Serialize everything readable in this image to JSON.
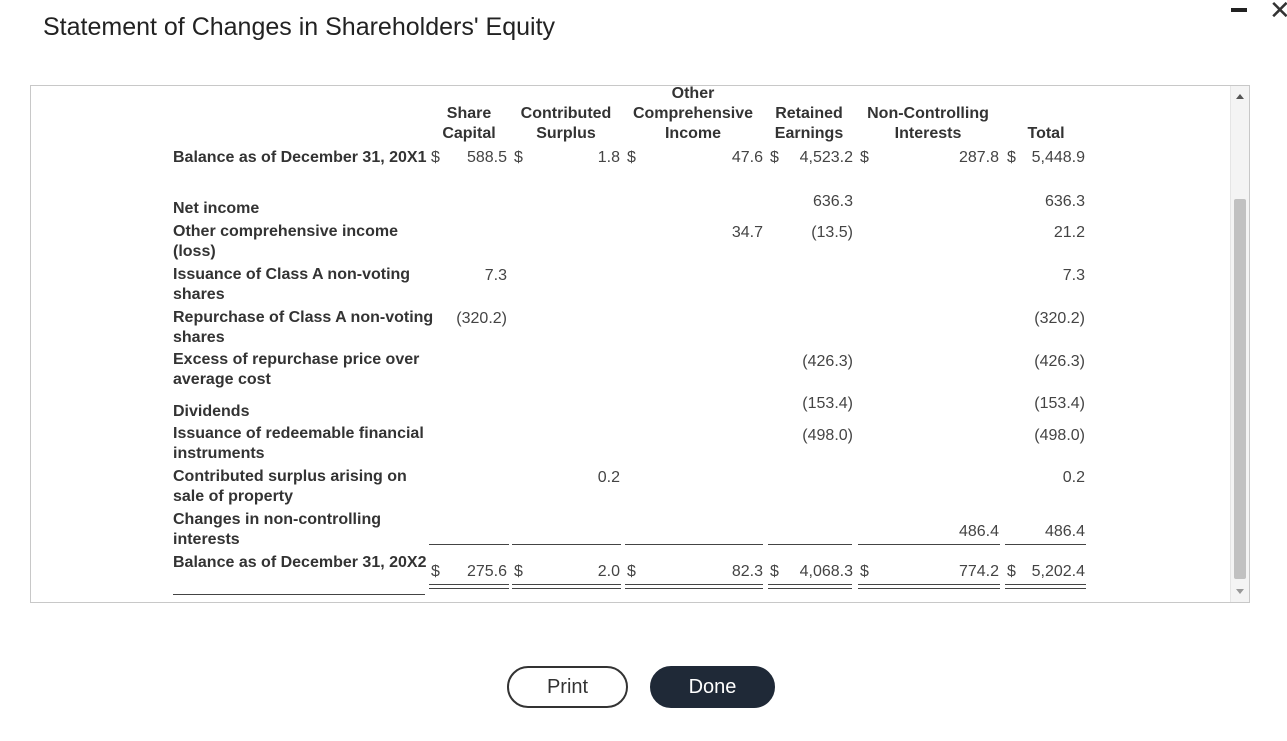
{
  "title": "Statement of Changes in Shareholders' Equity",
  "window": {
    "minimize_icon": "minimize-icon",
    "close_icon": "close-icon",
    "close_glyph": "✕"
  },
  "columns": {
    "share_capital": [
      "Share",
      "Capital"
    ],
    "contributed_surplus": [
      "Contributed",
      "Surplus"
    ],
    "oci": [
      "Other",
      "Comprehensive",
      "Income"
    ],
    "retained_earnings": [
      "Retained",
      "Earnings"
    ],
    "nci": [
      "Non-Controlling",
      "Interests"
    ],
    "total": [
      "Total"
    ]
  },
  "currency": "$",
  "rows": [
    {
      "label": "Balance as of December 31, 20X1",
      "share_capital": "588.5",
      "contributed_surplus": "1.8",
      "oci": "47.6",
      "retained_earnings": "4,523.2",
      "nci": "287.8",
      "total": "5,448.9"
    },
    {
      "label": "Net income",
      "share_capital": "",
      "contributed_surplus": "",
      "oci": "",
      "retained_earnings": "636.3",
      "nci": "",
      "total": "636.3"
    },
    {
      "label": "Other comprehensive income (loss)",
      "share_capital": "",
      "contributed_surplus": "",
      "oci": "34.7",
      "retained_earnings": "(13.5)",
      "nci": "",
      "total": "21.2"
    },
    {
      "label": "Issuance of Class A non-voting shares",
      "share_capital": "7.3",
      "contributed_surplus": "",
      "oci": "",
      "retained_earnings": "",
      "nci": "",
      "total": "7.3"
    },
    {
      "label": "Repurchase of Class A non-voting shares",
      "share_capital": "(320.2)",
      "contributed_surplus": "",
      "oci": "",
      "retained_earnings": "",
      "nci": "",
      "total": "(320.2)"
    },
    {
      "label": "Excess of repurchase price over average cost",
      "share_capital": "",
      "contributed_surplus": "",
      "oci": "",
      "retained_earnings": "(426.3)",
      "nci": "",
      "total": "(426.3)"
    },
    {
      "label": "Dividends",
      "share_capital": "",
      "contributed_surplus": "",
      "oci": "",
      "retained_earnings": "(153.4)",
      "nci": "",
      "total": "(153.4)"
    },
    {
      "label": "Issuance of redeemable financial instruments",
      "share_capital": "",
      "contributed_surplus": "",
      "oci": "",
      "retained_earnings": "(498.0)",
      "nci": "",
      "total": "(498.0)"
    },
    {
      "label": "Contributed surplus arising on sale of property",
      "share_capital": "",
      "contributed_surplus": "0.2",
      "oci": "",
      "retained_earnings": "",
      "nci": "",
      "total": "0.2"
    },
    {
      "label": "Changes in non-controlling interests",
      "share_capital": "",
      "contributed_surplus": "",
      "oci": "",
      "retained_earnings": "",
      "nci": "486.4",
      "total": "486.4"
    },
    {
      "label": "Balance as of December 31, 20X2",
      "share_capital": "275.6",
      "contributed_surplus": "2.0",
      "oci": "82.3",
      "retained_earnings": "4,068.3",
      "nci": "774.2",
      "total": "5,202.4"
    }
  ],
  "buttons": {
    "print": "Print",
    "done": "Done"
  }
}
